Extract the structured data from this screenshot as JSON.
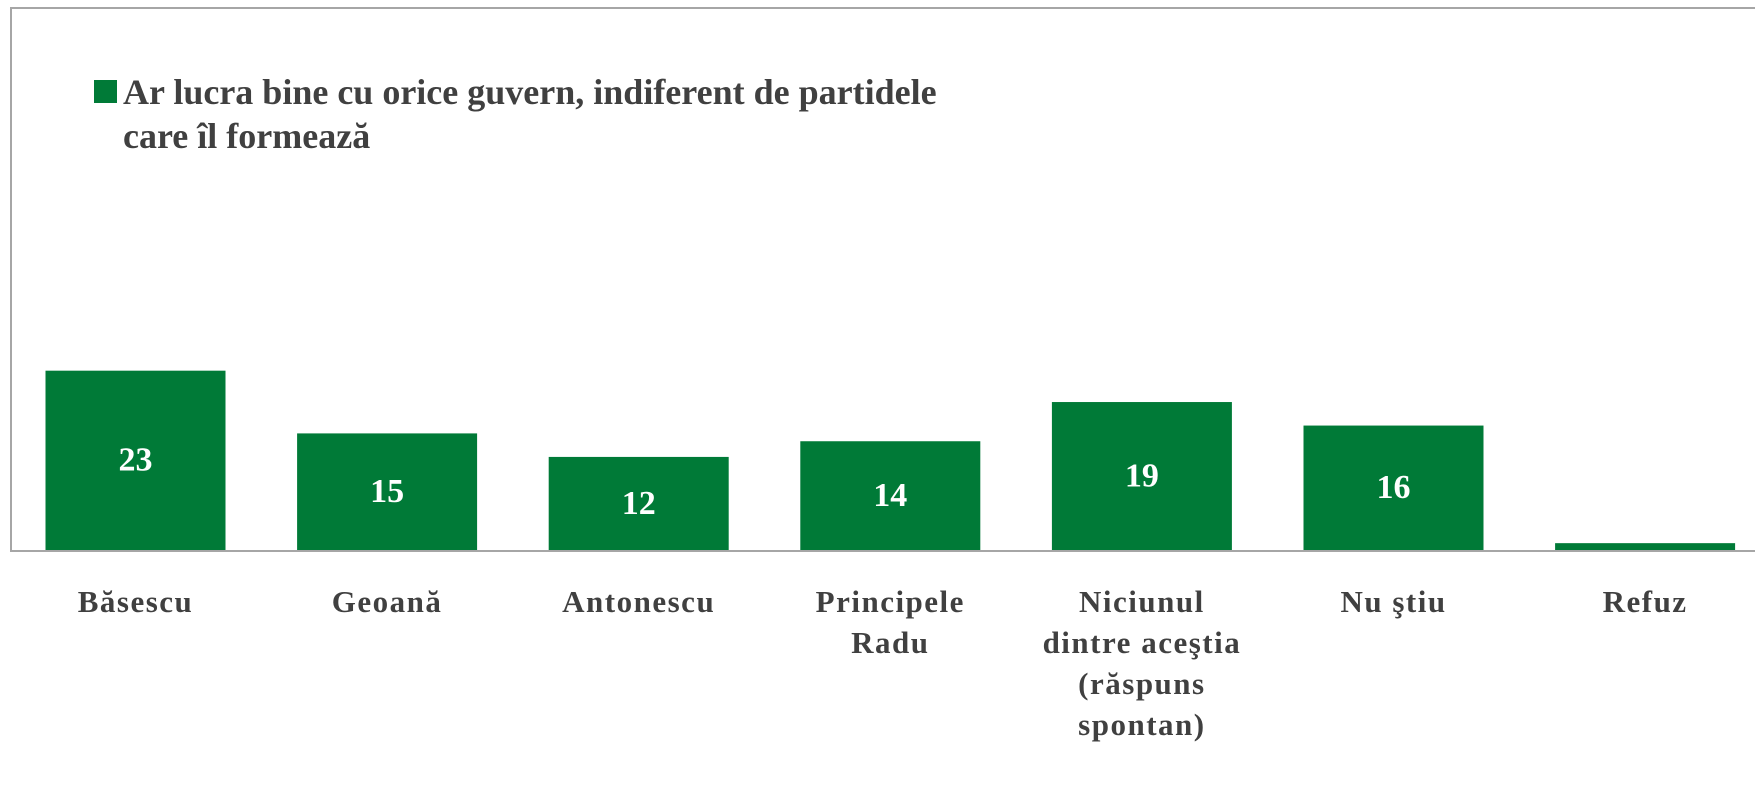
{
  "chart_data": {
    "type": "bar",
    "legend": "Ar lucra bine cu orice guvern, indiferent de partidele care îl formează",
    "color": "#007a37",
    "categories": [
      "Băsescu",
      "Geoană",
      "Antonescu",
      "Principele Radu",
      "Niciunul dintre aceştia (răspuns spontan)",
      "Nu ştiu",
      "Refuz"
    ],
    "values": [
      23,
      15,
      12,
      14,
      19,
      16,
      1
    ],
    "value_labels": [
      "23",
      "15",
      "12",
      "14",
      "19",
      "16",
      null
    ]
  }
}
